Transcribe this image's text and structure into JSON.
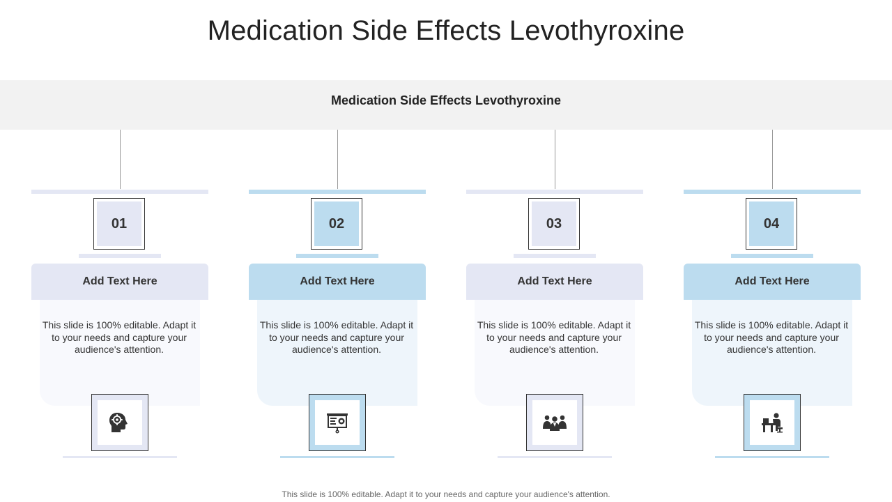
{
  "title": "Medication Side Effects Levothyroxine",
  "banner": "Medication Side Effects Levothyroxine",
  "footer": "This slide is 100% editable. Adapt it to your needs and capture your audience's attention.",
  "colors": {
    "lavender": "#e4e7f4",
    "blue": "#bcdcef",
    "banner_bg": "#f2f2f2"
  },
  "cards": [
    {
      "number": "01",
      "heading": "Add  Text Here",
      "body": "This slide is 100% editable. Adapt it to your needs and capture your audience's attention.",
      "icon": "head-gear-icon"
    },
    {
      "number": "02",
      "heading": "Add  Text Here",
      "body": "This slide is 100% editable. Adapt it to your needs and capture your audience's attention.",
      "icon": "presentation-board-icon"
    },
    {
      "number": "03",
      "heading": "Add  Text Here",
      "body": "This slide is 100% editable. Adapt it to your needs and capture your audience's attention.",
      "icon": "team-icon"
    },
    {
      "number": "04",
      "heading": "Add  Text Here",
      "body": "This slide is 100% editable. Adapt it to your needs and capture your audience's attention.",
      "icon": "person-at-desk-icon"
    }
  ]
}
